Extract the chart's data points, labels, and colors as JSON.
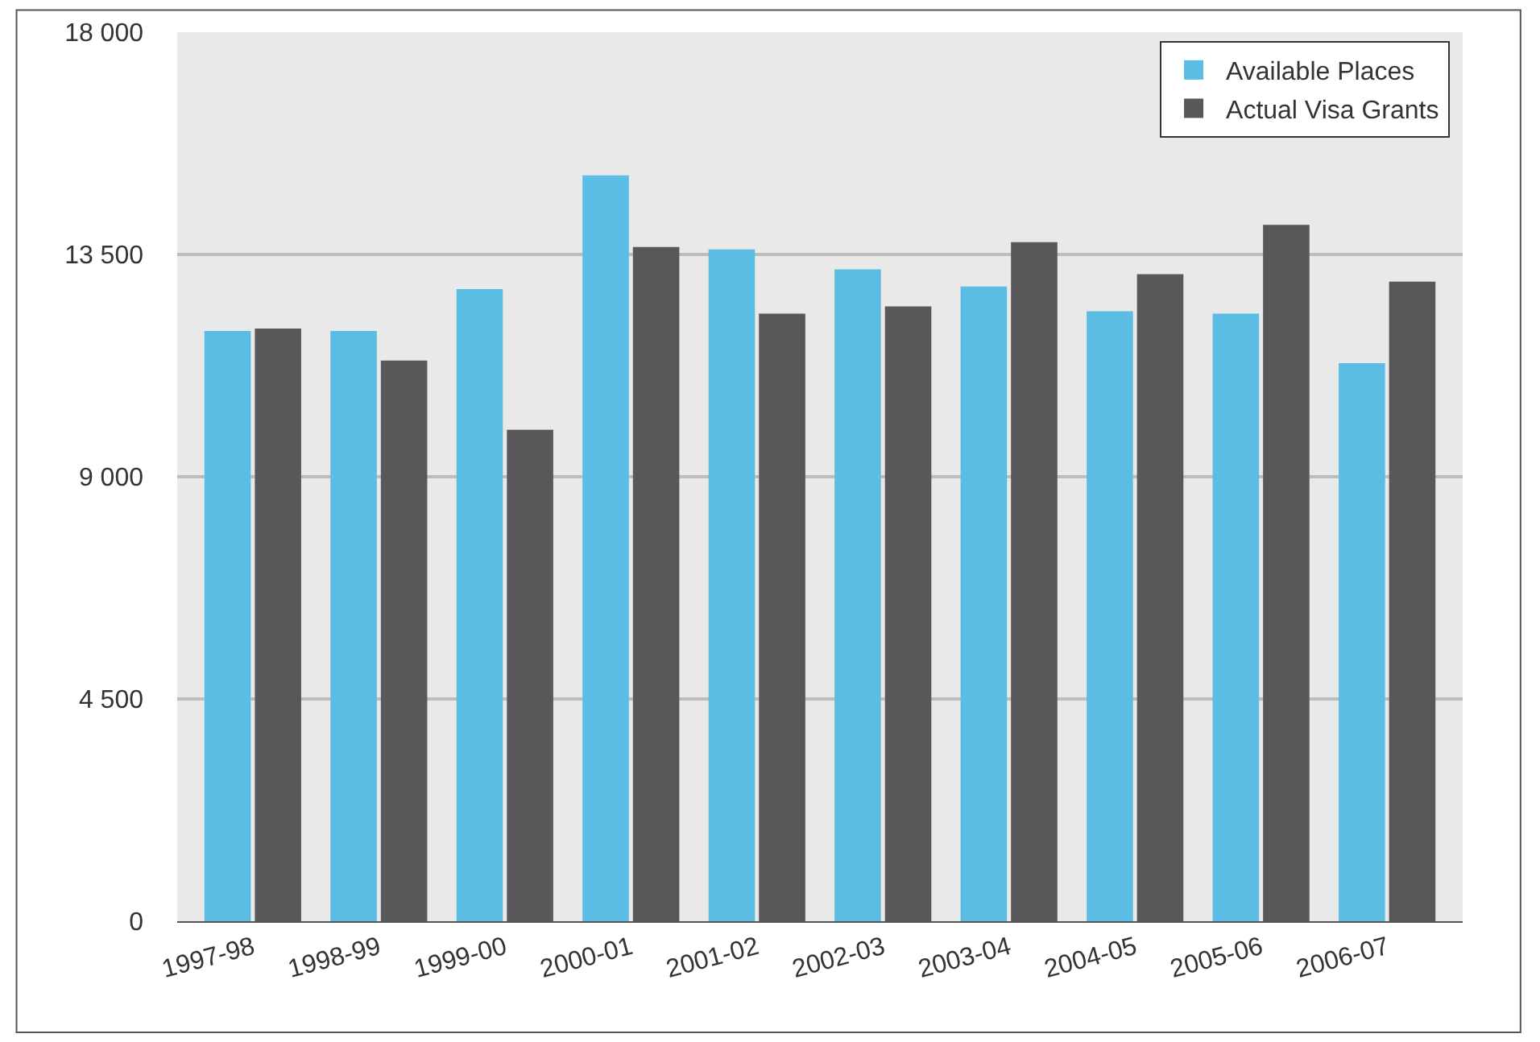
{
  "chart_data": {
    "type": "bar",
    "categories": [
      "1997-98",
      "1998-99",
      "1999-00",
      "2000-01",
      "2001-02",
      "2002-03",
      "2003-04",
      "2004-05",
      "2005-06",
      "2006-07"
    ],
    "series": [
      {
        "name": "Available Places",
        "color": "#5bbde4",
        "values": [
          11950,
          11950,
          12800,
          15100,
          13600,
          13200,
          12850,
          12350,
          12300,
          11300
        ]
      },
      {
        "name": "Actual Visa Grants",
        "color": "#58585a",
        "values": [
          12000,
          11350,
          9950,
          13650,
          12300,
          12450,
          13750,
          13100,
          14100,
          12950
        ]
      }
    ],
    "ylim": [
      0,
      18000
    ],
    "yticks": [
      0,
      {
        "value": 4500,
        "label": "4 500"
      },
      {
        "value": 9000,
        "label": "9 000"
      },
      {
        "value": 13500,
        "label": "13 500"
      },
      {
        "value": 18000,
        "label": "18 000"
      }
    ],
    "grid": "y",
    "legend": "top right"
  }
}
